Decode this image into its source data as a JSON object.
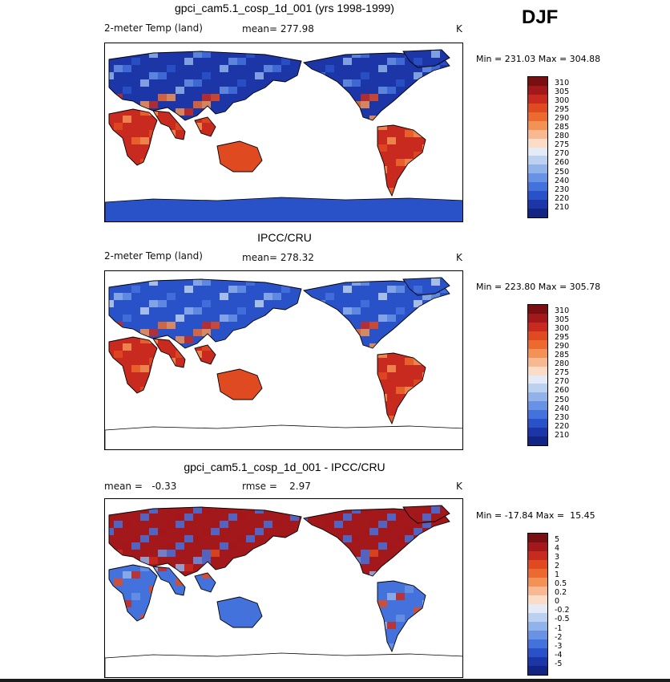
{
  "season": "DJF",
  "panels": [
    {
      "title": "gpci_cam5.1_cosp_1d_001 (yrs 1998-1999)",
      "left_label": "2-meter Temp (land)",
      "stat_label": "mean= 277.98",
      "unit": "K",
      "min_max": "Min = 231.03 Max = 304.88",
      "colorbar_ticks": [
        "310",
        "305",
        "300",
        "295",
        "290",
        "285",
        "280",
        "275",
        "270",
        "260",
        "250",
        "240",
        "230",
        "220",
        "210"
      ],
      "colors": [
        "#7a0f12",
        "#a3181b",
        "#c92a1f",
        "#df4a21",
        "#ec6a2f",
        "#f39255",
        "#f7b892",
        "#fbdcc6",
        "#e4ebf7",
        "#bcd0f0",
        "#92b2ea",
        "#6892e4",
        "#4472dc",
        "#2a52c8",
        "#1c36a8",
        "#132584"
      ],
      "field": "model"
    },
    {
      "title": "IPCC/CRU",
      "left_label": "2-meter Temp (land)",
      "stat_label": "mean= 278.32",
      "unit": "K",
      "min_max": "Min = 223.80 Max = 305.78",
      "colorbar_ticks": [
        "310",
        "305",
        "300",
        "295",
        "290",
        "285",
        "280",
        "275",
        "270",
        "260",
        "250",
        "240",
        "230",
        "220",
        "210"
      ],
      "colors": [
        "#7a0f12",
        "#a3181b",
        "#c92a1f",
        "#df4a21",
        "#ec6a2f",
        "#f39255",
        "#f7b892",
        "#fbdcc6",
        "#e4ebf7",
        "#bcd0f0",
        "#92b2ea",
        "#6892e4",
        "#4472dc",
        "#2a52c8",
        "#1c36a8",
        "#132584"
      ],
      "field": "obs"
    },
    {
      "title": "gpci_cam5.1_cosp_1d_001 - IPCC/CRU",
      "left_label": "mean =   -0.33",
      "stat_label": "rmse =    2.97",
      "unit": "K",
      "min_max": "Min = -17.84 Max =  15.45",
      "colorbar_ticks": [
        "5",
        "4",
        "3",
        "2",
        "1",
        "0.5",
        "0.2",
        "0",
        "-0.2",
        "-0.5",
        "-1",
        "-2",
        "-3",
        "-4",
        "-5"
      ],
      "colors": [
        "#7a0f12",
        "#a3181b",
        "#c92a1f",
        "#df4a21",
        "#ec6a2f",
        "#f39255",
        "#f7b892",
        "#fbdcc6",
        "#e4ebf7",
        "#bcd0f0",
        "#92b2ea",
        "#6892e4",
        "#4472dc",
        "#2a52c8",
        "#1c36a8",
        "#132584"
      ],
      "field": "diff"
    }
  ]
}
